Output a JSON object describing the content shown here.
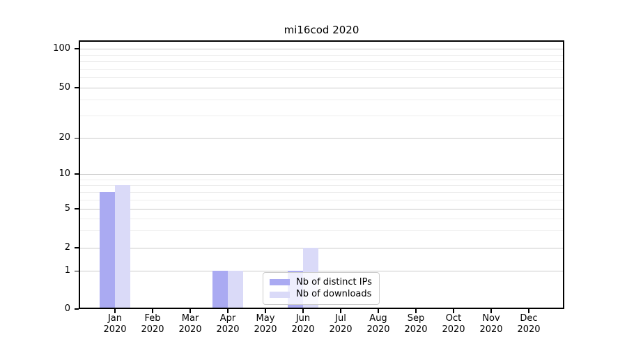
{
  "chart_data": {
    "type": "bar",
    "title": "mi16cod 2020",
    "categories": [
      {
        "month": "Jan",
        "year": "2020"
      },
      {
        "month": "Feb",
        "year": "2020"
      },
      {
        "month": "Mar",
        "year": "2020"
      },
      {
        "month": "Apr",
        "year": "2020"
      },
      {
        "month": "May",
        "year": "2020"
      },
      {
        "month": "Jun",
        "year": "2020"
      },
      {
        "month": "Jul",
        "year": "2020"
      },
      {
        "month": "Aug",
        "year": "2020"
      },
      {
        "month": "Sep",
        "year": "2020"
      },
      {
        "month": "Oct",
        "year": "2020"
      },
      {
        "month": "Nov",
        "year": "2020"
      },
      {
        "month": "Dec",
        "year": "2020"
      }
    ],
    "series": [
      {
        "name": "Nb of distinct IPs",
        "color": "#aaaaf2",
        "values": [
          7,
          0,
          0,
          1,
          0,
          1,
          0,
          0,
          0,
          0,
          0,
          0
        ]
      },
      {
        "name": "Nb of downloads",
        "color": "#dadaf8",
        "values": [
          8,
          0,
          0,
          1,
          0,
          2,
          0,
          0,
          0,
          0,
          0,
          0
        ]
      }
    ],
    "y_axis": {
      "scale": "log-like, linear below 1",
      "major_ticks": [
        0,
        1,
        2,
        5,
        10,
        20,
        50,
        100
      ],
      "minor_gridlines": [
        3,
        4,
        6,
        7,
        8,
        9,
        30,
        40,
        60,
        70,
        80,
        90
      ],
      "ylim": [
        0,
        116
      ]
    },
    "legend": {
      "entries": [
        "Nb of distinct IPs",
        "Nb of downloads"
      ],
      "position": "inside-bottom-center"
    },
    "grid": {
      "major_color": "#c9c9c9",
      "minor_color": "#ededed"
    },
    "colors": {
      "axis": "#000000",
      "text": "#000000",
      "background": "#ffffff"
    }
  }
}
